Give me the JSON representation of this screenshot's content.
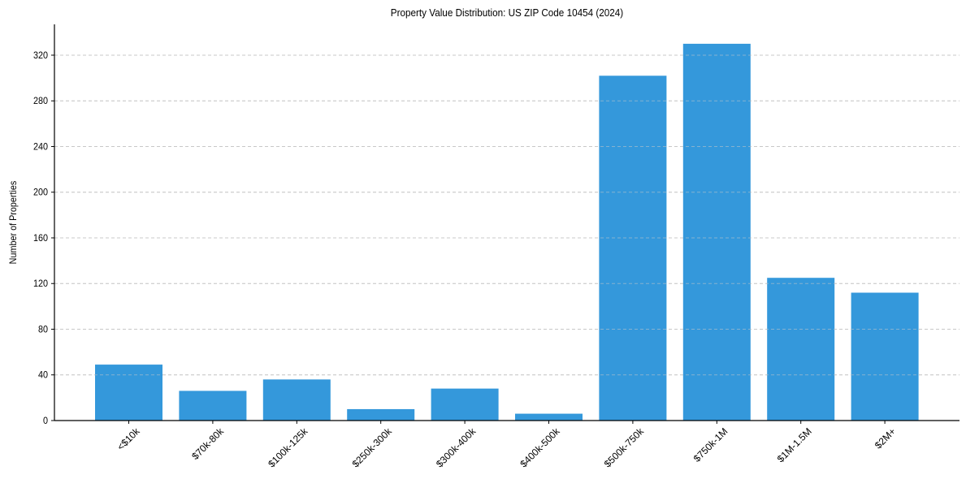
{
  "chart_data": {
    "type": "bar",
    "title": "Property Value Distribution: US ZIP Code 10454 (2024)",
    "xlabel": "",
    "ylabel": "Number of Properties",
    "categories": [
      "<$10k",
      "$70k-80k",
      "$100k-125k",
      "$250k-300k",
      "$300k-400k",
      "$400k-500k",
      "$500k-750k",
      "$750k-1M",
      "$1M-1.5M",
      "$2M+"
    ],
    "values": [
      49,
      26,
      36,
      10,
      28,
      6,
      302,
      330,
      125,
      112
    ],
    "ylim": [
      0,
      347
    ],
    "yticks": [
      0,
      40,
      80,
      120,
      160,
      200,
      240,
      280,
      320
    ],
    "grid": {
      "axis": "y",
      "style": "dashed",
      "color": "#c8c8c8"
    },
    "bar_color": "#3498db",
    "x_tick_rotation": 45,
    "legend": null
  }
}
